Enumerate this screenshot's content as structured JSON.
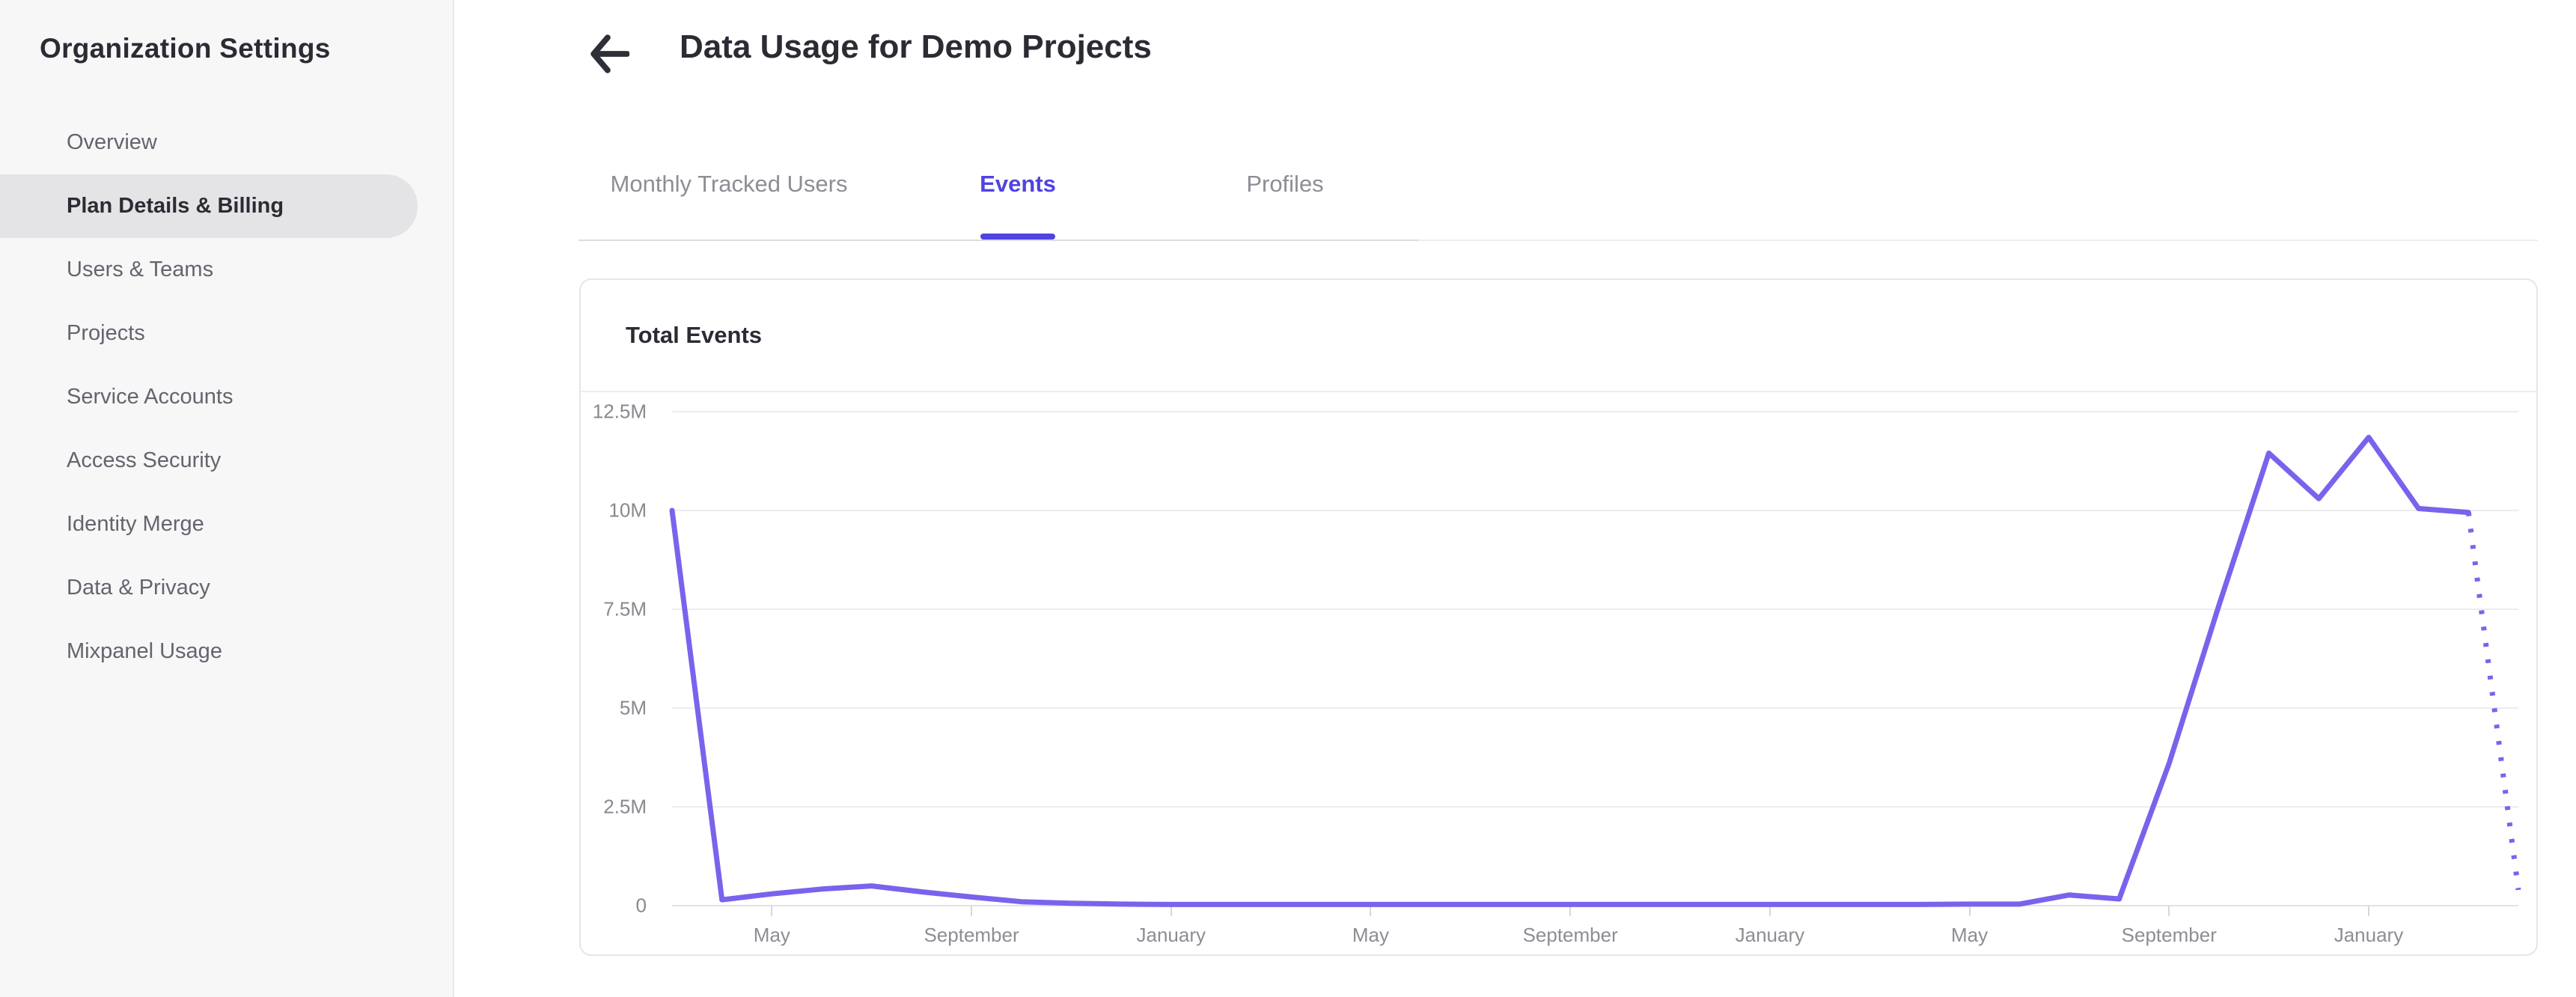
{
  "sidebar": {
    "title": "Organization Settings",
    "items": [
      {
        "label": "Overview",
        "active": false
      },
      {
        "label": "Plan Details & Billing",
        "active": true
      },
      {
        "label": "Users & Teams",
        "active": false
      },
      {
        "label": "Projects",
        "active": false
      },
      {
        "label": "Service Accounts",
        "active": false
      },
      {
        "label": "Access Security",
        "active": false
      },
      {
        "label": "Identity Merge",
        "active": false
      },
      {
        "label": "Data & Privacy",
        "active": false
      },
      {
        "label": "Mixpanel Usage",
        "active": false
      }
    ]
  },
  "header": {
    "title": "Data Usage for Demo Projects"
  },
  "tabs": [
    {
      "label": "Monthly Tracked Users",
      "active": false
    },
    {
      "label": "Events",
      "active": true
    },
    {
      "label": "Profiles",
      "active": false
    }
  ],
  "card": {
    "title": "Total Events"
  },
  "colors": {
    "accent": "#4f43e1",
    "line": "#7a63ec",
    "grid": "#ededf0",
    "dark_text": "#2b2b33"
  },
  "chart_data": {
    "type": "line",
    "title": "Total Events",
    "unit": "events, millions",
    "series": [
      {
        "name": "Total Events",
        "values_millions": [
          10,
          0.15,
          0.3,
          0.42,
          0.5,
          0.35,
          0.22,
          0.1,
          0.06,
          0.04,
          0.03,
          0.03,
          0.03,
          0.03,
          0.03,
          0.03,
          0.03,
          0.03,
          0.03,
          0.03,
          0.03,
          0.03,
          0.03,
          0.03,
          0.03,
          0.03,
          0.04,
          0.04,
          0.27,
          0.17,
          3.6,
          7.6,
          11.45,
          10.3,
          11.85,
          10.05,
          9.95,
          0.4
        ]
      }
    ],
    "points_are_monthly": true,
    "last_point_projected_dotted": true,
    "x_labels": [
      "May",
      "September",
      "January",
      "May",
      "September",
      "January",
      "May",
      "September",
      "January"
    ],
    "x_label_indices": [
      2,
      6,
      10,
      14,
      18,
      22,
      26,
      30,
      34
    ],
    "y_ticks": [
      {
        "label": "12.5M",
        "value": 12.5
      },
      {
        "label": "10M",
        "value": 10
      },
      {
        "label": "7.5M",
        "value": 7.5
      },
      {
        "label": "5M",
        "value": 5
      },
      {
        "label": "2.5M",
        "value": 2.5
      },
      {
        "label": "0",
        "value": 0
      }
    ],
    "ylim": [
      0,
      12.5
    ],
    "grid": true,
    "legend_position": "none"
  }
}
